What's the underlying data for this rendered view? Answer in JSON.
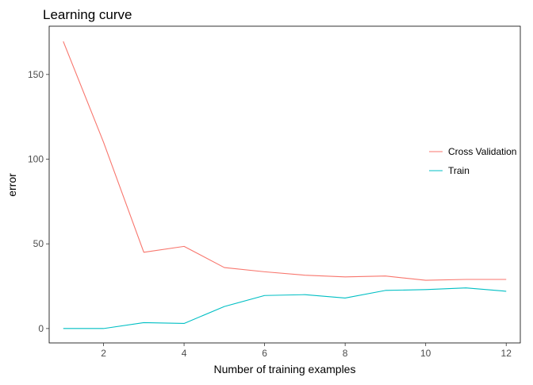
{
  "chart_data": {
    "type": "line",
    "title": "Learning curve",
    "xlabel": "Number of training examples",
    "ylabel": "error",
    "xlim": [
      0.65,
      12.35
    ],
    "ylim": [
      -8.5,
      178.5
    ],
    "xticks": [
      2,
      4,
      6,
      8,
      10,
      12
    ],
    "yticks": [
      0,
      50,
      100,
      150
    ],
    "grid": false,
    "legend_position": "right",
    "x": [
      1,
      2,
      3,
      4,
      5,
      6,
      7,
      8,
      9,
      10,
      11,
      12
    ],
    "series": [
      {
        "name": "Cross Validation",
        "color": "#F8766D",
        "values": [
          169.5,
          110.0,
          45.0,
          48.5,
          36.0,
          33.5,
          31.5,
          30.5,
          31.0,
          28.5,
          29.0,
          29.0
        ]
      },
      {
        "name": "Train",
        "color": "#00BFC4",
        "values": [
          0.0,
          0.0,
          3.5,
          3.0,
          13.0,
          19.5,
          20.0,
          18.0,
          22.5,
          23.0,
          24.0,
          22.0
        ]
      }
    ]
  }
}
